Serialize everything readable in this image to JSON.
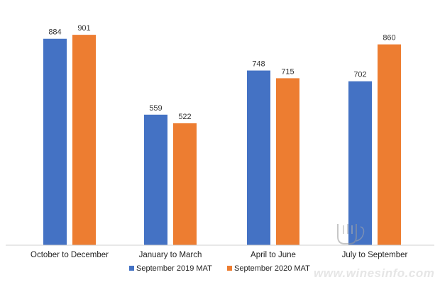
{
  "chart_data": {
    "type": "bar",
    "categories": [
      "October to December",
      "January to March",
      "April to June",
      "July to September"
    ],
    "series": [
      {
        "name": "September 2019 MAT",
        "color": "#4472C4",
        "values": [
          884,
          559,
          748,
          702
        ]
      },
      {
        "name": "September 2020 MAT",
        "color": "#ED7D31",
        "values": [
          901,
          522,
          715,
          860
        ]
      }
    ],
    "ylim": [
      0,
      1000
    ],
    "grid": false,
    "legend_position": "bottom-left"
  },
  "watermark": {
    "text": "www.winesinfo.com"
  }
}
